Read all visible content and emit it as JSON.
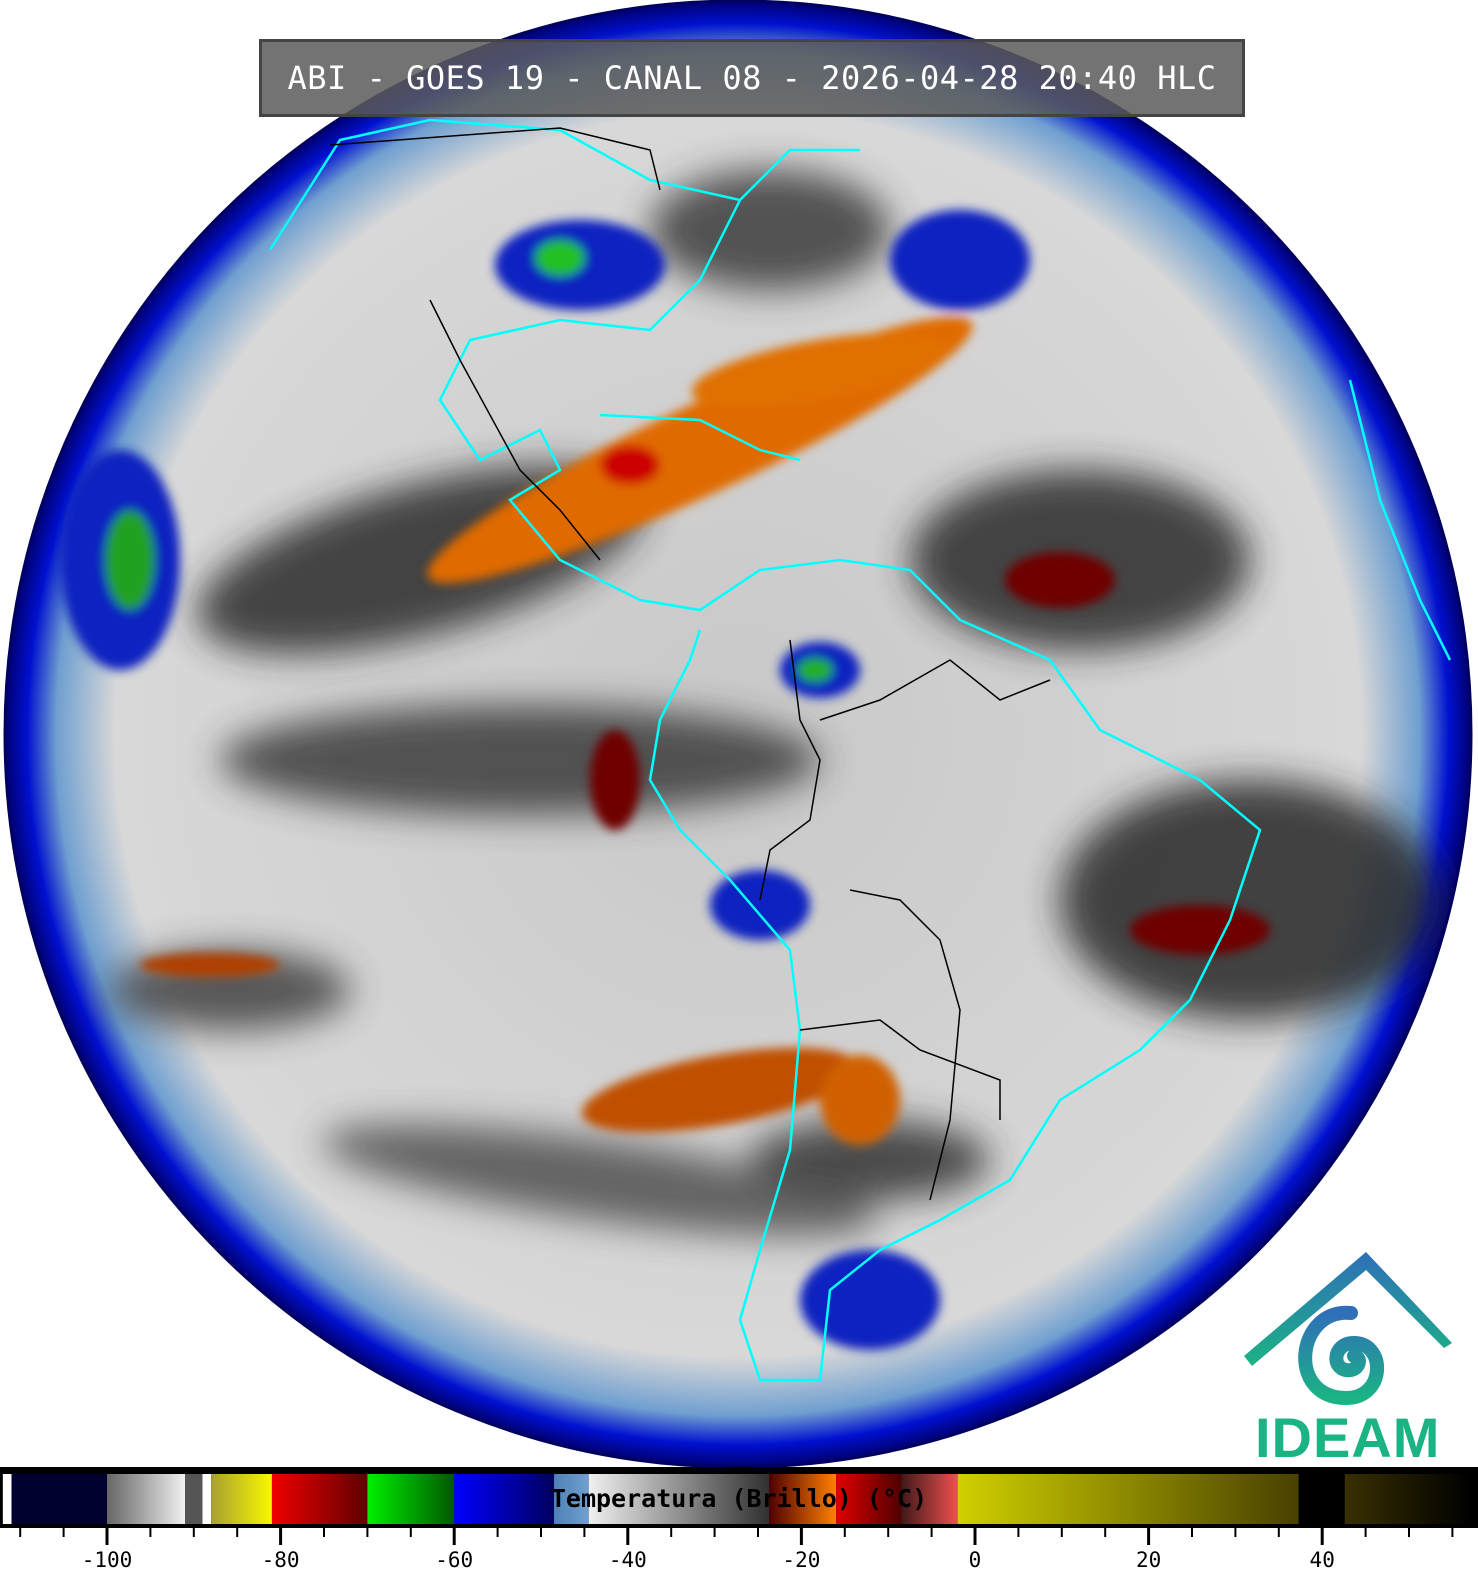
{
  "title": "ABI - GOES 19 - CANAL 08 - 2026-04-28 20:40 HLC",
  "logo": {
    "text": "IDEAM",
    "colors": {
      "top": "#2f6fb8",
      "bottom": "#1bb384"
    }
  },
  "colorbar": {
    "label": "Temperatura (Brillo) (°C)",
    "range": [
      -112,
      57
    ],
    "ticks_minor_step": 5,
    "tick_labels": [
      "-100",
      "-80",
      "-60",
      "-40",
      "-20",
      "0",
      "20",
      "40"
    ],
    "tick_values": [
      -100,
      -80,
      -60,
      -40,
      -20,
      0,
      20,
      40
    ],
    "segments": [
      {
        "from": -112,
        "to": -111,
        "colors": [
          "#ffffff",
          "#ffffff"
        ]
      },
      {
        "from": -111,
        "to": -100,
        "colors": [
          "#000030",
          "#000030"
        ]
      },
      {
        "from": -100,
        "to": -91,
        "colors": [
          "#666666",
          "#f0f0f0"
        ]
      },
      {
        "from": -91,
        "to": -89,
        "colors": [
          "#555555",
          "#555555"
        ]
      },
      {
        "from": -89,
        "to": -88,
        "colors": [
          "#ffffff",
          "#ffffff"
        ]
      },
      {
        "from": -88,
        "to": -81,
        "colors": [
          "#a8a030",
          "#f8f800"
        ]
      },
      {
        "from": -81,
        "to": -70,
        "colors": [
          "#f00000",
          "#600000"
        ]
      },
      {
        "from": -70,
        "to": -60,
        "colors": [
          "#00f000",
          "#005800"
        ]
      },
      {
        "from": -60,
        "to": -48.5,
        "colors": [
          "#0000ff",
          "#000060"
        ]
      },
      {
        "from": -48.5,
        "to": -44.5,
        "colors": [
          "#4f80b8",
          "#6fa0d0"
        ]
      },
      {
        "from": -44.5,
        "to": -23.7,
        "colors": [
          "#f0f0f0",
          "#303030"
        ]
      },
      {
        "from": -23.7,
        "to": -16,
        "colors": [
          "#500000",
          "#ff8000"
        ]
      },
      {
        "from": -16,
        "to": -8.5,
        "colors": [
          "#e00000",
          "#500000"
        ]
      },
      {
        "from": -8.5,
        "to": -2,
        "colors": [
          "#401818",
          "#f05050"
        ]
      },
      {
        "from": -2,
        "to": 37.3,
        "colors": [
          "#d0d000",
          "#484000"
        ]
      },
      {
        "from": 37.3,
        "to": 42.6,
        "colors": [
          "#000000",
          "#000000"
        ]
      },
      {
        "from": 42.6,
        "to": 57,
        "colors": [
          "#383000",
          "#000000"
        ]
      }
    ]
  },
  "colors": {
    "coastline": "#00ffff",
    "borders": "#000000",
    "limb": "#0000a0"
  }
}
